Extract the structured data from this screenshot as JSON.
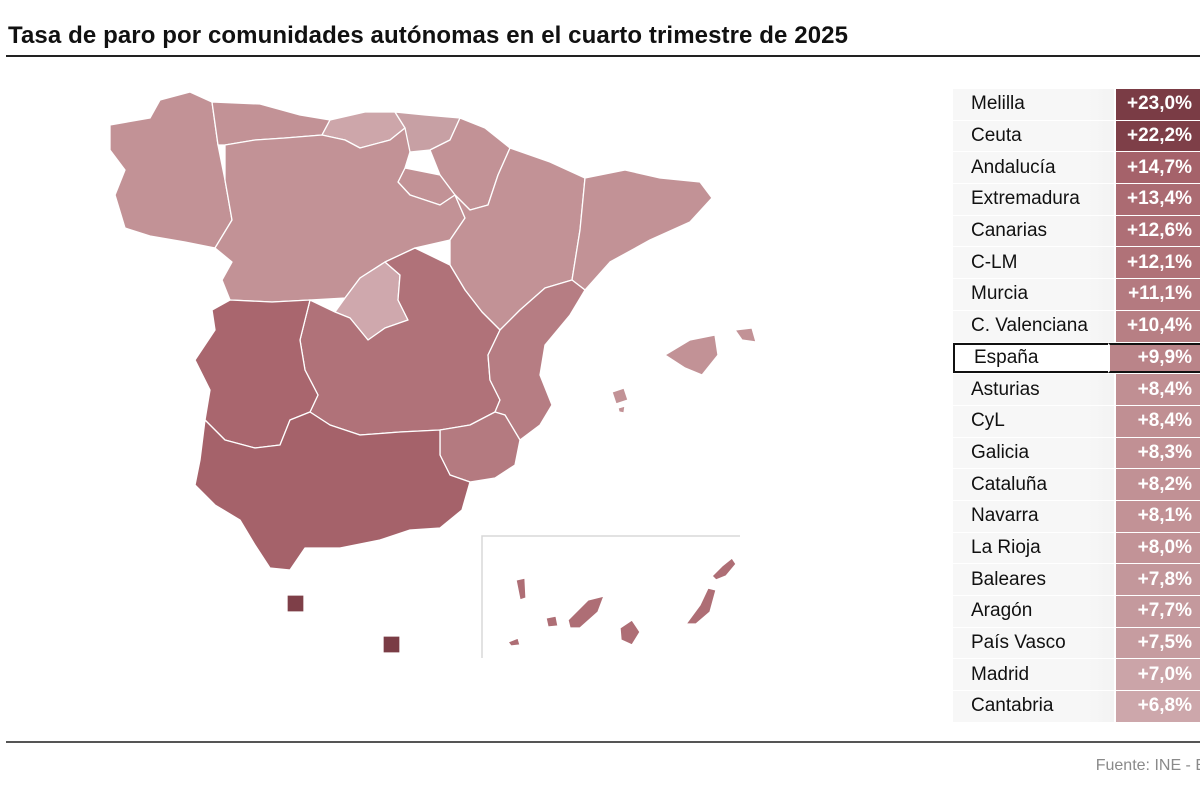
{
  "header": {
    "title": "Tasa de paro por comunidades autónomas en el cuarto trimestre de 2025"
  },
  "footer": {
    "source": "Fuente: INE - E"
  },
  "colors": {
    "scale_dark": "#7a3c45",
    "scale_mid": "#a7646b",
    "scale_light": "#c39599",
    "scale_lightest": "#d5b2b6"
  },
  "table": {
    "rows": [
      {
        "name": "Melilla",
        "value": "+23,0%",
        "color": "#7a3c45"
      },
      {
        "name": "Ceuta",
        "value": "+22,2%",
        "color": "#7e3f48"
      },
      {
        "name": "Andalucía",
        "value": "+14,7%",
        "color": "#a5626a"
      },
      {
        "name": "Extremadura",
        "value": "+13,4%",
        "color": "#ab6b72"
      },
      {
        "name": "Canarias",
        "value": "+12,6%",
        "color": "#ae6f76"
      },
      {
        "name": "C-LM",
        "value": "+12,1%",
        "color": "#b07278"
      },
      {
        "name": "Murcia",
        "value": "+11,1%",
        "color": "#b47a80"
      },
      {
        "name": "C. Valenciana",
        "value": "+10,4%",
        "color": "#b77f84"
      },
      {
        "name": "España",
        "value": "+9,9%",
        "color": "#ba8489",
        "highlight": true
      },
      {
        "name": "Asturias",
        "value": "+8,4%",
        "color": "#c08f93"
      },
      {
        "name": "CyL",
        "value": "+8,4%",
        "color": "#c08f93"
      },
      {
        "name": "Galicia",
        "value": "+8,3%",
        "color": "#c19094"
      },
      {
        "name": "Cataluña",
        "value": "+8,2%",
        "color": "#c19195"
      },
      {
        "name": "Navarra",
        "value": "+8,1%",
        "color": "#c29296"
      },
      {
        "name": "La Rioja",
        "value": "+8,0%",
        "color": "#c29397"
      },
      {
        "name": "Baleares",
        "value": "+7,8%",
        "color": "#c3979b"
      },
      {
        "name": "Aragón",
        "value": "+7,7%",
        "color": "#c4999d"
      },
      {
        "name": "País Vasco",
        "value": "+7,5%",
        "color": "#c69ca0"
      },
      {
        "name": "Madrid",
        "value": "+7,0%",
        "color": "#cba4a8"
      },
      {
        "name": "Cantabria",
        "value": "+6,8%",
        "color": "#cda7ab"
      }
    ]
  },
  "map": {
    "regions": [
      {
        "id": "galicia",
        "value": 8.3,
        "color": "#c29296"
      },
      {
        "id": "asturias",
        "value": 8.4,
        "color": "#c29296"
      },
      {
        "id": "cantabria",
        "value": 6.8,
        "color": "#cda6aa"
      },
      {
        "id": "pais-vasco",
        "value": 7.5,
        "color": "#c7a0a4"
      },
      {
        "id": "navarra",
        "value": 8.1,
        "color": "#c29296"
      },
      {
        "id": "la-rioja",
        "value": 8.0,
        "color": "#c29296"
      },
      {
        "id": "castilla-y-leon",
        "value": 8.4,
        "color": "#c29296"
      },
      {
        "id": "aragon",
        "value": 7.7,
        "color": "#c29296"
      },
      {
        "id": "cataluna",
        "value": 8.2,
        "color": "#c29296"
      },
      {
        "id": "madrid",
        "value": 7.0,
        "color": "#cfa8ad"
      },
      {
        "id": "extremadura",
        "value": 13.4,
        "color": "#a9666e"
      },
      {
        "id": "castilla-la-mancha",
        "value": 12.1,
        "color": "#b07279"
      },
      {
        "id": "c-valenciana",
        "value": 10.4,
        "color": "#b67d83"
      },
      {
        "id": "murcia",
        "value": 11.1,
        "color": "#b47a80"
      },
      {
        "id": "andalucia",
        "value": 14.7,
        "color": "#a5626a"
      },
      {
        "id": "baleares",
        "value": 7.8,
        "color": "#c29296"
      },
      {
        "id": "canarias",
        "value": 12.6,
        "color": "#ae6e75"
      },
      {
        "id": "ceuta",
        "value": 22.2,
        "color": "#7e3f48"
      },
      {
        "id": "melilla",
        "value": 23.0,
        "color": "#7a3c45"
      }
    ]
  }
}
